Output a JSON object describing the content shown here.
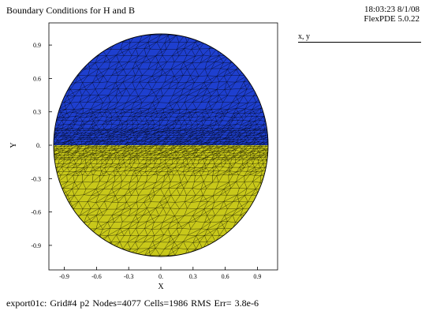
{
  "title": "Boundary Conditions for H and B",
  "timestamp": "18:03:23 8/1/08",
  "version": "FlexPDE 5.0.22",
  "legend_label": "x, y",
  "footer": "export01c:  Grid#4  p2  Nodes=4077 Cells=1986 RMS Err= 3.8e-6",
  "plot": {
    "xlabel": "X",
    "ylabel": "Y",
    "x_ticks": [
      {
        "label": "-0.9",
        "value": -0.9
      },
      {
        "label": "-0.6",
        "value": -0.6
      },
      {
        "label": "-0.3",
        "value": -0.3
      },
      {
        "label": "0.",
        "value": 0
      },
      {
        "label": "0.3",
        "value": 0.3
      },
      {
        "label": "0.6",
        "value": 0.6
      },
      {
        "label": "0.9",
        "value": 0.9
      }
    ],
    "y_ticks": [
      {
        "label": "0.9",
        "value": 0.9
      },
      {
        "label": "0.6",
        "value": 0.6
      },
      {
        "label": "0.3",
        "value": 0.3
      },
      {
        "label": "0.",
        "value": 0
      },
      {
        "label": "-0.3",
        "value": -0.3
      },
      {
        "label": "-0.6",
        "value": -0.6
      },
      {
        "label": "-0.9",
        "value": -0.9
      }
    ],
    "xlim": [
      -1.05,
      1.05
    ],
    "ylim": [
      -1.05,
      1.05
    ],
    "circle_radius": 1.0,
    "regions": [
      {
        "range": "y>0",
        "color": "#1e3fcf"
      },
      {
        "range": "y<0",
        "color": "#c8c81a"
      }
    ],
    "mesh_color": "#000000"
  }
}
